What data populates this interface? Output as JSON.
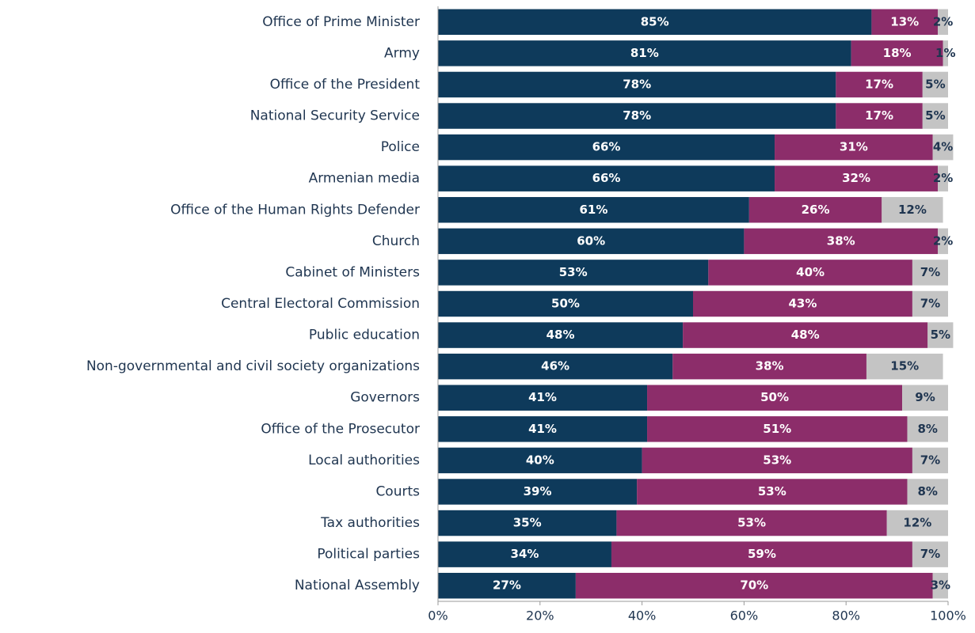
{
  "chart_data": {
    "type": "stacked-barh",
    "categories": [
      "Office of Prime Minister",
      "Army",
      "Office of the President",
      "National Security Service",
      "Police",
      "Armenian media",
      "Office of the Human Rights Defender",
      "Church",
      "Cabinet of Ministers",
      "Central Electoral Commission",
      "Public education",
      "Non-governmental and civil society organizations",
      "Governors",
      "Office of the Prosecutor",
      "Local authorities",
      "Courts",
      "Tax authorities",
      "Political parties",
      "National Assembly"
    ],
    "series": [
      {
        "color": "#0e3a5b",
        "label_color": "#ffffff",
        "values": [
          85,
          81,
          78,
          78,
          66,
          66,
          61,
          60,
          53,
          50,
          48,
          46,
          41,
          41,
          40,
          39,
          35,
          34,
          27
        ],
        "value_labels": [
          "85%",
          "81%",
          "78%",
          "78%",
          "66%",
          "66%",
          "61%",
          "60%",
          "53%",
          "50%",
          "48%",
          "46%",
          "41%",
          "41%",
          "40%",
          "39%",
          "35%",
          "34%",
          "27%"
        ]
      },
      {
        "color": "#8c2d6a",
        "label_color": "#ffffff",
        "values": [
          13,
          18,
          17,
          17,
          31,
          32,
          26,
          38,
          40,
          43,
          48,
          38,
          50,
          51,
          53,
          53,
          53,
          59,
          70
        ],
        "value_labels": [
          "13%",
          "18%",
          "17%",
          "17%",
          "31%",
          "32%",
          "26%",
          "38%",
          "40%",
          "43%",
          "48%",
          "38%",
          "50%",
          "51%",
          "53%",
          "53%",
          "53%",
          "59%",
          "70%"
        ]
      },
      {
        "color": "#c4c4c4",
        "label_color": "#1f3550",
        "values": [
          2,
          1,
          5,
          5,
          4,
          2,
          12,
          2,
          7,
          7,
          5,
          15,
          9,
          8,
          7,
          8,
          12,
          7,
          3
        ],
        "value_labels": [
          "2%",
          "1%",
          "5%",
          "5%",
          "4%",
          "2%",
          "12%",
          "2%",
          "7%",
          "7%",
          "5%",
          "15%",
          "9%",
          "8%",
          "7%",
          "8%",
          "12%",
          "7%",
          "3%"
        ]
      }
    ],
    "xlim": [
      0,
      100
    ],
    "xticks": [
      {
        "value": 0,
        "label": "0%"
      },
      {
        "value": 20,
        "label": "20%"
      },
      {
        "value": 40,
        "label": "40%"
      },
      {
        "value": 60,
        "label": "60%"
      },
      {
        "value": 80,
        "label": "80%"
      },
      {
        "value": 100,
        "label": "100%"
      }
    ]
  }
}
